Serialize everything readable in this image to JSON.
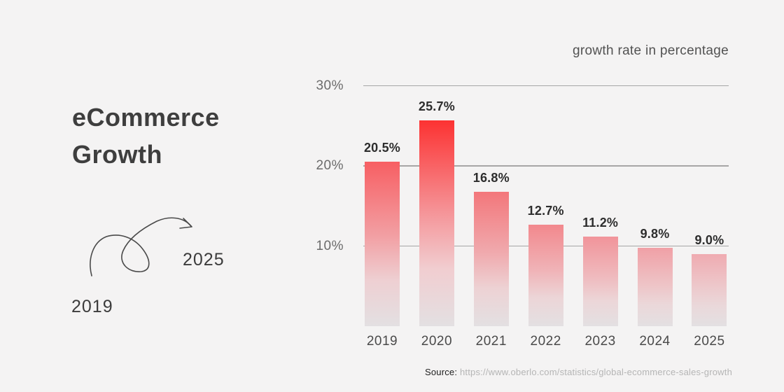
{
  "left_panel": {
    "title_line1": "eCommerce",
    "title_line2": "Growth",
    "start_year": "2019",
    "end_year": "2025",
    "arrow_icon": "swirl-arrow-right"
  },
  "chart": {
    "unit_label": "growth rate in percentage"
  },
  "source": {
    "prefix": "Source:",
    "url": "https://www.oberlo.com/statistics/global-ecommerce-sales-growth"
  },
  "colors": {
    "background": "#f4f3f3",
    "title_text": "#3e3e3e",
    "gridline": "#a6a6a6",
    "bar_bottom": "#e3e0e2",
    "accent_red": "#fc3232"
  },
  "chart_data": {
    "type": "bar",
    "title": "eCommerce Growth",
    "note": "growth rate in percentage",
    "categories": [
      "2019",
      "2020",
      "2021",
      "2022",
      "2023",
      "2024",
      "2025"
    ],
    "values": [
      20.5,
      25.7,
      16.8,
      12.7,
      11.2,
      9.8,
      9.0
    ],
    "value_labels": [
      "20.5%",
      "25.7%",
      "16.8%",
      "12.7%",
      "11.2%",
      "9.8%",
      "9.0%"
    ],
    "bar_gradients": [
      [
        "#f75f63",
        "#f29fa3",
        "#eecfd2",
        "#e3e0e2"
      ],
      [
        "#fc3232",
        "#f59599",
        "#f1cdd0",
        "#e3e0e2"
      ],
      [
        "#f3777b",
        "#f0a9ad",
        "#edd2d4",
        "#e3e0e2"
      ],
      [
        "#f2888d",
        "#f0b3b7",
        "#ecd5d7",
        "#e3e0e2"
      ],
      [
        "#f1949a",
        "#efbabe",
        "#ecd6d8",
        "#e3e0e2"
      ],
      [
        "#f0a0a6",
        "#eec2c5",
        "#ebd7d9",
        "#e3e0e2"
      ],
      [
        "#efabb1",
        "#edc8cb",
        "#ead8da",
        "#e3e0e2"
      ]
    ],
    "xlabel": "",
    "ylabel": "",
    "ylim": [
      0,
      30
    ],
    "yticks": [
      {
        "value": 30,
        "label": "30%"
      },
      {
        "value": 20,
        "label": "20%"
      },
      {
        "value": 10,
        "label": "10%"
      }
    ],
    "grid": true,
    "legend": false
  }
}
